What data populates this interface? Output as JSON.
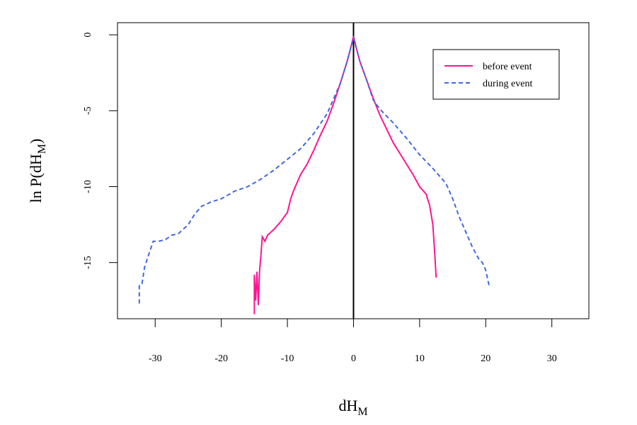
{
  "chart_data": {
    "type": "line",
    "x_label": [
      "dH",
      "M"
    ],
    "y_label": [
      "ln P(dH",
      "M",
      ")"
    ],
    "xlim": [
      -35.7,
      35.6
    ],
    "ylim": [
      -18.7,
      0.8
    ],
    "xticks": [
      -30,
      -20,
      -10,
      0,
      10,
      20,
      30
    ],
    "yticks": [
      0,
      -5,
      -10,
      -15
    ],
    "vline": 0,
    "legend": "topright",
    "series": [
      {
        "name": "before event",
        "color": "#ff1493",
        "dash": "solid",
        "x": [
          -15.0,
          -15.0,
          -14.8,
          -14.6,
          -14.4,
          -14.2,
          -14.0,
          -13.8,
          -13.4,
          -13.0,
          -12.5,
          -12.0,
          -11.0,
          -10.0,
          -9.5,
          -9.0,
          -8.0,
          -7.0,
          -6.0,
          -5.0,
          -4.0,
          -3.0,
          -2.0,
          -1.0,
          -0.5,
          0,
          0.5,
          1,
          2,
          3,
          4,
          5,
          6,
          7,
          8,
          9,
          10,
          11,
          11.2,
          11.5,
          12.0,
          12.3,
          12.5
        ],
        "values": [
          -18.4,
          -15.8,
          -17.5,
          -15.6,
          -17.8,
          -15.5,
          -14.5,
          -13.3,
          -13.6,
          -13.2,
          -13.0,
          -12.8,
          -12.3,
          -11.7,
          -10.8,
          -10.2,
          -9.2,
          -8.5,
          -7.6,
          -6.6,
          -5.7,
          -4.5,
          -3.2,
          -1.8,
          -1.0,
          -0.1,
          -1.0,
          -1.8,
          -3.0,
          -4.2,
          -5.3,
          -6.2,
          -7.1,
          -7.8,
          -8.5,
          -9.2,
          -10.0,
          -10.5,
          -10.8,
          -11.2,
          -12.5,
          -14.5,
          -16.0
        ]
      },
      {
        "name": "during event",
        "color": "#4169e1",
        "dash": "dashed",
        "x": [
          -32.4,
          -32.4,
          -32.0,
          -31.6,
          -31.0,
          -30.3,
          -29.5,
          -28.5,
          -27.5,
          -26.5,
          -25.0,
          -24.0,
          -23.0,
          -21.5,
          -20.0,
          -18.0,
          -16.0,
          -14.0,
          -12.0,
          -10.0,
          -8.0,
          -6.0,
          -4.0,
          -2.0,
          -1.0,
          0,
          1,
          2,
          3,
          4,
          6,
          8,
          10,
          12,
          14,
          15,
          16,
          17,
          18,
          19,
          19.5,
          20,
          20.5
        ],
        "values": [
          -17.7,
          -16.5,
          -16.4,
          -15.3,
          -14.5,
          -13.6,
          -13.6,
          -13.5,
          -13.2,
          -13.1,
          -12.5,
          -11.8,
          -11.3,
          -11.0,
          -10.8,
          -10.3,
          -10.0,
          -9.5,
          -8.9,
          -8.2,
          -7.5,
          -6.5,
          -5.2,
          -3.2,
          -1.8,
          -0.2,
          -1.8,
          -3.0,
          -4.3,
          -4.9,
          -5.8,
          -6.8,
          -7.9,
          -8.8,
          -9.8,
          -10.8,
          -12.0,
          -13.0,
          -14.0,
          -14.8,
          -15.0,
          -15.5,
          -16.5
        ]
      }
    ]
  }
}
